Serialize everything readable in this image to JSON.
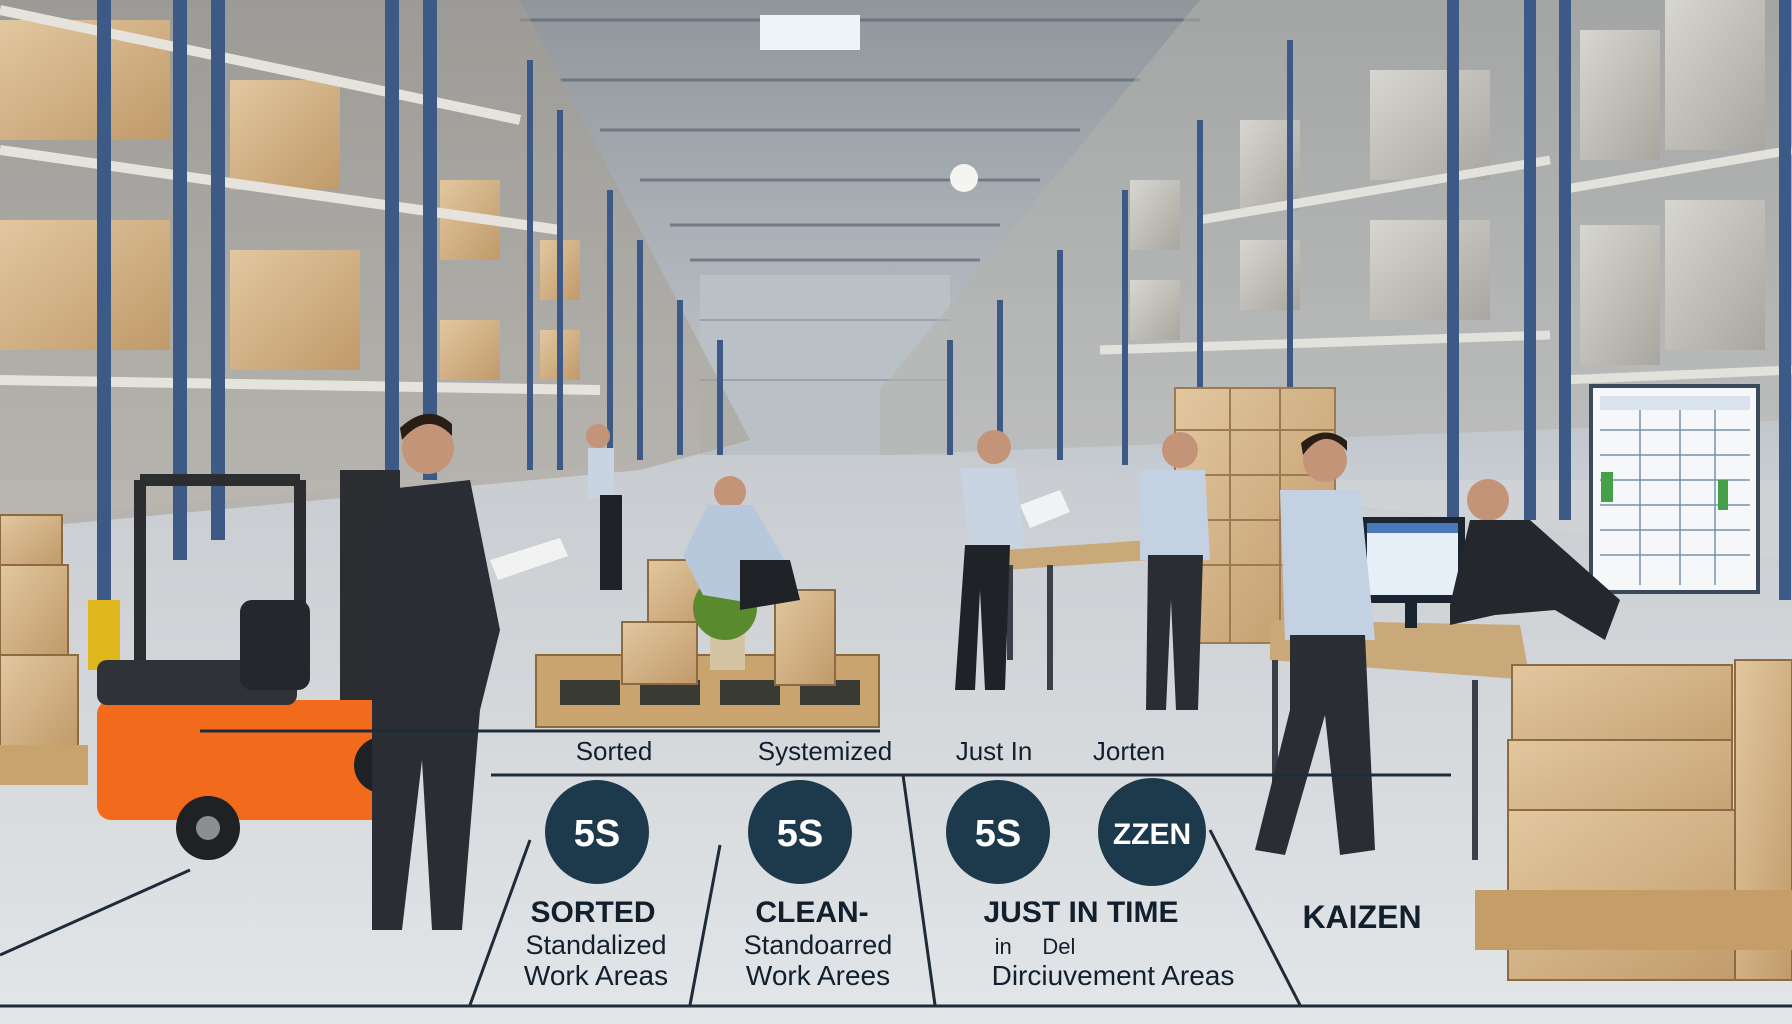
{
  "scene": {
    "description_labels": {
      "top_row": [
        "Sorted",
        "Systemized",
        "Just In",
        "Jorten"
      ],
      "badges": [
        "5S",
        "5S",
        "5S",
        "ZZEN"
      ],
      "columns": [
        {
          "heading": "SORTED",
          "line1": "Standalized",
          "line2": "Work Areas"
        },
        {
          "heading": "CLEAN-",
          "line1": "Standoarred",
          "line2": "Work Arees"
        },
        {
          "heading": "JUST IN TIME",
          "line1": "in     Del",
          "line2": "Dirciuvement Areas"
        },
        {
          "heading": "KAIZEN",
          "line1": "",
          "line2": ""
        }
      ]
    },
    "colors": {
      "badge": "#1c3a4c",
      "forklift": "#f26a1b",
      "rack": "#3d5a86",
      "floor": "#d9dde0",
      "cardboard": "#d2b48c"
    }
  }
}
